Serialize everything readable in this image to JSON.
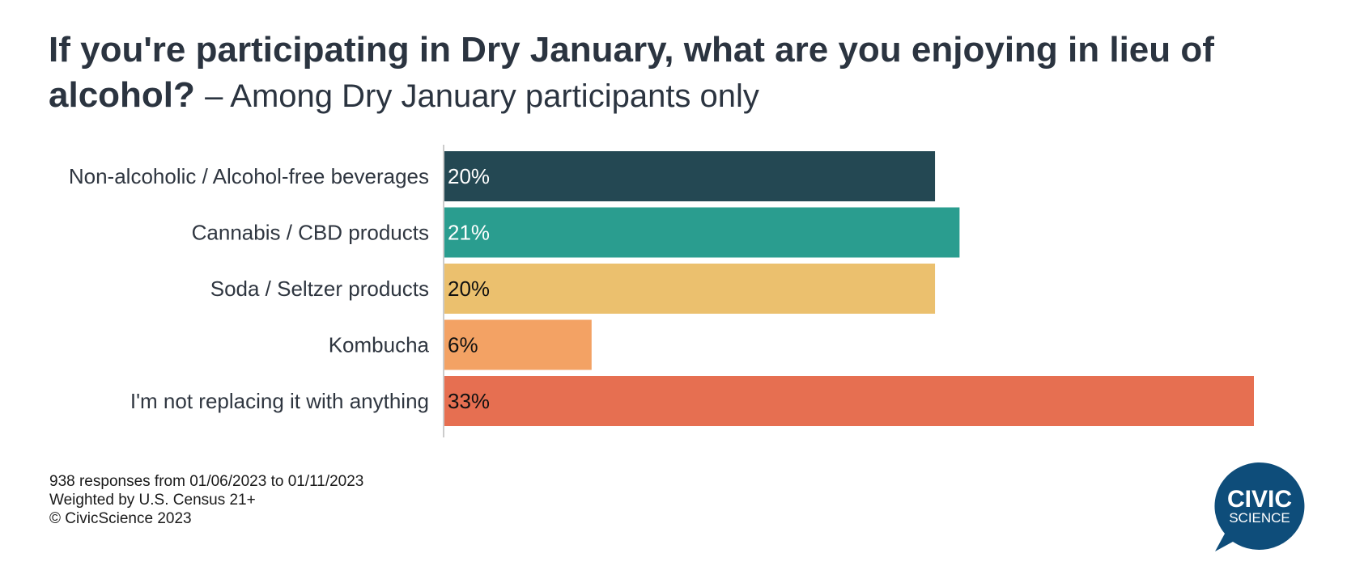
{
  "title": {
    "main": "If you're participating in Dry January, what are you enjoying in lieu of alcohol?",
    "sub": "– Among Dry January participants only"
  },
  "chart_data": {
    "type": "bar",
    "orientation": "horizontal",
    "categories": [
      "Non-alcoholic / Alcohol-free beverages",
      "Cannabis / CBD products",
      "Soda / Seltzer products",
      "Kombucha",
      "I'm not replacing it with anything"
    ],
    "values": [
      20,
      21,
      20,
      6,
      33
    ],
    "value_labels": [
      "20%",
      "21%",
      "20%",
      "6%",
      "33%"
    ],
    "unit": "%",
    "colors": [
      "#244853",
      "#2a9d8f",
      "#ebc06e",
      "#f3a264",
      "#e66f51"
    ],
    "label_colors": [
      "#ffffff",
      "#ffffff",
      "#111111",
      "#111111",
      "#111111"
    ],
    "xlim": [
      0,
      33
    ],
    "grid": false,
    "legend": "none"
  },
  "footer": {
    "line1": "938 responses from 01/06/2023 to 01/11/2023",
    "line2": "Weighted by U.S. Census 21+",
    "line3": "© CivicScience 2023"
  },
  "logo": {
    "line1": "CIVIC",
    "line2": "SCIENCE",
    "color": "#0e4d7a"
  }
}
